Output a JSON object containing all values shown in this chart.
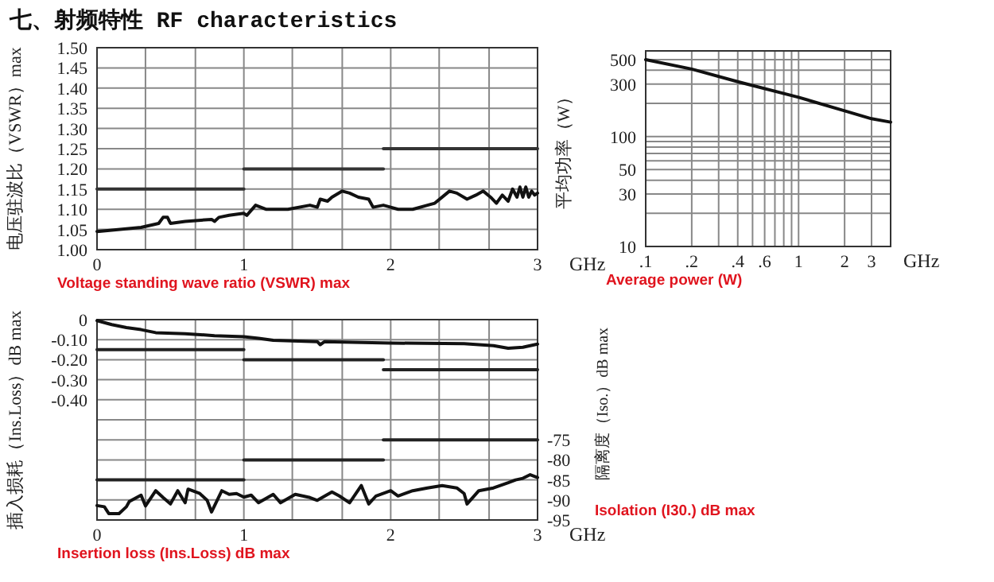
{
  "chart_data": [
    {
      "type": "line",
      "title": "七、射频特性 RF characteristics",
      "ylabel": "电压驻波比（VSWR）max",
      "xlabel": "GHz",
      "annotations": [
        "Voltage standing wave ratio (VSWR) max"
      ],
      "grid": true,
      "xlim": [
        0,
        3
      ],
      "ylim": [
        1.0,
        1.5
      ],
      "xticks": [
        0,
        {
          "value": 0.33,
          "label": null
        },
        {
          "value": 0.67,
          "label": null
        },
        1,
        {
          "value": 1.33,
          "label": null
        },
        {
          "value": 1.67,
          "label": null
        },
        2,
        {
          "value": 2.33,
          "label": null
        },
        {
          "value": 2.67,
          "label": null
        },
        3
      ],
      "yticks": [
        {
          "value": 1.0,
          "label": "1.00"
        },
        {
          "value": 1.05,
          "label": "1.05"
        },
        {
          "value": 1.1,
          "label": "1.10"
        },
        {
          "value": 1.15,
          "label": "1.15"
        },
        {
          "value": 1.2,
          "label": "1.20"
        },
        {
          "value": 1.25,
          "label": "1.25"
        },
        {
          "value": 1.3,
          "label": "1.30"
        },
        {
          "value": 1.35,
          "label": "1.35"
        },
        {
          "value": 1.4,
          "label": "1.40"
        },
        {
          "value": 1.45,
          "label": "1.45"
        },
        {
          "value": 1.5,
          "label": "1.50"
        }
      ],
      "series": [
        {
          "color": "#111111",
          "x": [
            0,
            0.3,
            0.42,
            0.45,
            0.48,
            0.5,
            0.6,
            0.78,
            0.8,
            0.83,
            0.9,
            1.0,
            1.02,
            1.08,
            1.15,
            1.3,
            1.45,
            1.5,
            1.52,
            1.57,
            1.6,
            1.67,
            1.72,
            1.78,
            1.85,
            1.88,
            1.95,
            2.0,
            2.05,
            2.15,
            2.25,
            2.3,
            2.4,
            2.45,
            2.52,
            2.58,
            2.63,
            2.68,
            2.72,
            2.76,
            2.8,
            2.83,
            2.86,
            2.88,
            2.9,
            2.92,
            2.94,
            2.96,
            2.98,
            3.0
          ],
          "values": [
            1.045,
            1.055,
            1.065,
            1.08,
            1.08,
            1.065,
            1.07,
            1.075,
            1.07,
            1.08,
            1.085,
            1.09,
            1.085,
            1.11,
            1.1,
            1.1,
            1.11,
            1.105,
            1.125,
            1.12,
            1.13,
            1.145,
            1.14,
            1.13,
            1.125,
            1.105,
            1.11,
            1.105,
            1.1,
            1.1,
            1.11,
            1.115,
            1.145,
            1.14,
            1.125,
            1.135,
            1.145,
            1.13,
            1.115,
            1.135,
            1.12,
            1.15,
            1.13,
            1.155,
            1.13,
            1.155,
            1.13,
            1.145,
            1.135,
            1.14
          ]
        },
        {
          "color": "#333333",
          "x": [
            0,
            1
          ],
          "values": [
            1.15,
            1.15
          ]
        },
        {
          "color": "#333333",
          "x": [
            1,
            1.95
          ],
          "values": [
            1.2,
            1.2
          ]
        },
        {
          "color": "#333333",
          "x": [
            1.95,
            3
          ],
          "values": [
            1.25,
            1.25
          ]
        }
      ]
    },
    {
      "type": "line",
      "ylabel": "平均功率（W）",
      "xlabel": "GHz",
      "annotations": [
        "Average power (W)"
      ],
      "grid": true,
      "log": "xy",
      "xlim": [
        0.1,
        4
      ],
      "ylim": [
        10,
        600
      ],
      "xticks": [
        {
          "value": 0.1,
          "label": ".1"
        },
        {
          "value": 0.2,
          "label": ".2"
        },
        {
          "value": 0.3,
          "label": null
        },
        {
          "value": 0.4,
          "label": ".4"
        },
        {
          "value": 0.5,
          "label": null
        },
        {
          "value": 0.6,
          "label": ".6"
        },
        {
          "value": 0.7,
          "label": null
        },
        {
          "value": 0.8,
          "label": null
        },
        {
          "value": 0.9,
          "label": null
        },
        1,
        2,
        3
      ],
      "yticks": [
        10,
        {
          "value": 20,
          "label": null
        },
        30,
        {
          "value": 40,
          "label": null
        },
        50,
        {
          "value": 60,
          "label": null
        },
        {
          "value": 70,
          "label": null
        },
        {
          "value": 80,
          "label": null
        },
        {
          "value": 90,
          "label": null
        },
        100,
        {
          "value": 200,
          "label": null
        },
        300,
        {
          "value": 400,
          "label": null
        },
        500
      ],
      "series": [
        {
          "color": "#111111",
          "x": [
            0.1,
            0.2,
            0.4,
            1,
            2,
            3,
            4
          ],
          "values": [
            500,
            410,
            315,
            227,
            171,
            145,
            135
          ]
        }
      ]
    },
    {
      "type": "line",
      "ylabel": "插入损耗（Ins.Loss）dB max",
      "y2label": "隔离度（Iso.）dB max",
      "xlabel": "GHz",
      "annotations": [
        "Insertion loss (Ins.Loss) dB max",
        "Isolation (I30.) dB max"
      ],
      "grid": true,
      "xlim": [
        0,
        3
      ],
      "ylim": [
        -1,
        0
      ],
      "y2lim": [
        -95,
        -45
      ],
      "xticks": [
        0,
        {
          "value": 0.33,
          "label": null
        },
        {
          "value": 0.67,
          "label": null
        },
        1,
        {
          "value": 1.33,
          "label": null
        },
        {
          "value": 1.67,
          "label": null
        },
        2,
        {
          "value": 2.33,
          "label": null
        },
        {
          "value": 2.67,
          "label": null
        },
        3
      ],
      "yticks": [
        0,
        {
          "value": -0.1,
          "label": "-0.10"
        },
        {
          "value": -0.2,
          "label": "-0.20"
        },
        {
          "value": -0.3,
          "label": "-0.30"
        },
        {
          "value": -0.4,
          "label": "-0.40"
        },
        {
          "value": -0.5,
          "label": null
        },
        {
          "value": -0.6,
          "label": null
        },
        {
          "value": -0.7,
          "label": null
        },
        {
          "value": -0.8,
          "label": null
        },
        {
          "value": -0.9,
          "label": null
        },
        {
          "value": -1,
          "label": null
        }
      ],
      "y2ticks": [
        -75,
        -80,
        -85,
        -90,
        -95
      ],
      "series": [
        {
          "color": "#111111",
          "x": [
            0,
            0.1,
            0.2,
            0.3,
            0.4,
            0.6,
            0.8,
            1.0,
            1.1,
            1.2,
            1.5,
            1.52,
            1.55,
            2.0,
            2.5,
            2.7,
            2.8,
            2.9,
            3.0
          ],
          "values": [
            -0.005,
            -0.025,
            -0.04,
            -0.05,
            -0.065,
            -0.07,
            -0.08,
            -0.085,
            -0.093,
            -0.103,
            -0.11,
            -0.125,
            -0.11,
            -0.117,
            -0.12,
            -0.13,
            -0.143,
            -0.138,
            -0.122
          ]
        },
        {
          "color": "#222222",
          "x": [
            0,
            1
          ],
          "values": [
            -0.15,
            -0.15
          ]
        },
        {
          "color": "#222222",
          "x": [
            1,
            1.95
          ],
          "values": [
            -0.2,
            -0.2
          ]
        },
        {
          "color": "#222222",
          "x": [
            1.95,
            3
          ],
          "values": [
            -0.25,
            -0.25
          ]
        },
        {
          "color": "#111111",
          "axis": "y2",
          "x": [
            0,
            0.05,
            0.08,
            0.15,
            0.2,
            0.22,
            0.3,
            0.33,
            0.4,
            0.45,
            0.5,
            0.55,
            0.6,
            0.62,
            0.7,
            0.75,
            0.78,
            0.85,
            0.9,
            0.95,
            1.0,
            1.05,
            1.1,
            1.2,
            1.25,
            1.35,
            1.45,
            1.5,
            1.6,
            1.65,
            1.72,
            1.8,
            1.85,
            1.9,
            2.0,
            2.05,
            2.15,
            2.25,
            2.35,
            2.45,
            2.5,
            2.52,
            2.6,
            2.7,
            2.8,
            2.85,
            2.9,
            2.95,
            3.0
          ],
          "values": [
            -91.4,
            -91.7,
            -93.4,
            -93.4,
            -91.7,
            -90.4,
            -88.8,
            -91.5,
            -87.7,
            -89.4,
            -91,
            -87.7,
            -90.7,
            -87.3,
            -88.4,
            -90.1,
            -93,
            -87.7,
            -88.6,
            -88.4,
            -89.3,
            -88.8,
            -90.7,
            -88.6,
            -90.7,
            -88.6,
            -89.4,
            -90.1,
            -88,
            -89,
            -90.7,
            -86.4,
            -91,
            -89,
            -87.7,
            -89,
            -87.7,
            -87,
            -86.4,
            -87,
            -88.4,
            -91,
            -87.7,
            -87,
            -85.7,
            -85,
            -84.6,
            -83.7,
            -84.4
          ]
        },
        {
          "color": "#222222",
          "axis": "y2",
          "x": [
            0,
            1
          ],
          "values": [
            -85,
            -85
          ]
        },
        {
          "color": "#222222",
          "axis": "y2",
          "x": [
            1,
            1.95
          ],
          "values": [
            -80,
            -80
          ]
        },
        {
          "color": "#222222",
          "axis": "y2",
          "x": [
            1.95,
            3
          ],
          "values": [
            -75,
            -75
          ]
        }
      ]
    }
  ]
}
